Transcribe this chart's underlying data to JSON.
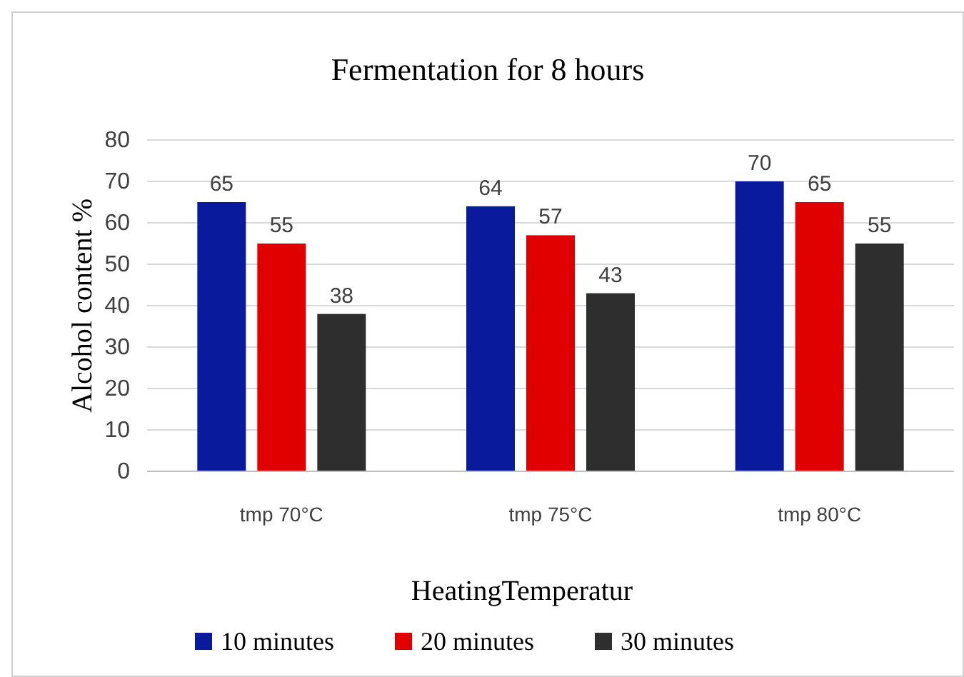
{
  "chart_data": {
    "type": "bar",
    "title": "Fermentation for 8 hours",
    "xlabel": "HeatingTemperatur",
    "ylabel": "Alcohol content %",
    "categories": [
      "tmp 70°C",
      "tmp 75°C",
      "tmp 80°C"
    ],
    "series": [
      {
        "name": "10 minutes",
        "color": "#0a1a9c",
        "values": [
          65,
          64,
          70
        ]
      },
      {
        "name": "20 minutes",
        "color": "#e00000",
        "values": [
          55,
          57,
          65
        ]
      },
      {
        "name": "30 minutes",
        "color": "#2e2e2e",
        "values": [
          38,
          43,
          55
        ]
      }
    ],
    "ylim": [
      0,
      80
    ],
    "yticks": [
      0,
      10,
      20,
      30,
      40,
      50,
      60,
      70,
      80
    ],
    "grid": "y",
    "legend": "bottom",
    "data_labels": true
  }
}
